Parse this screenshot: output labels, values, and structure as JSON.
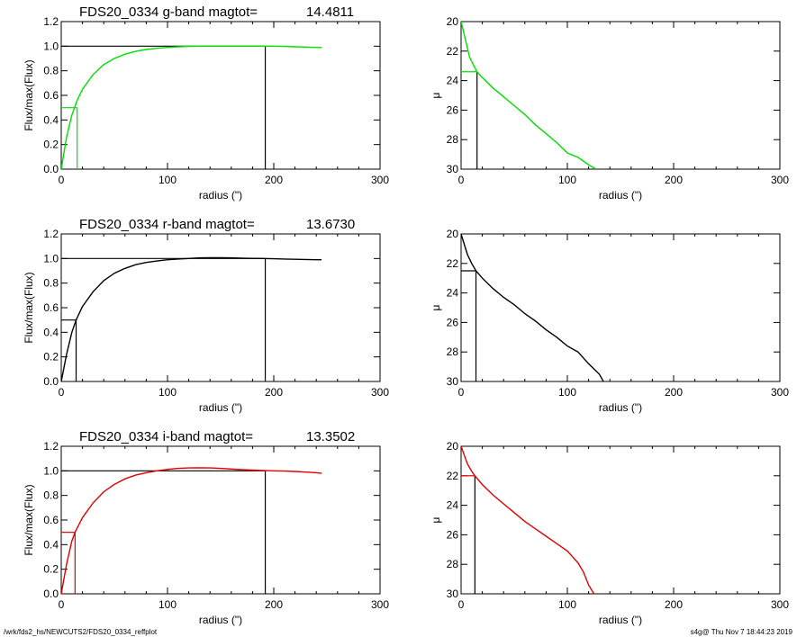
{
  "footer": {
    "left": "/wrk/fds2_hs/NEWCUTS2/FDS20_0334_reffplot",
    "right": "s4g@  Thu Nov  7 18:44:23 2019"
  },
  "colors": {
    "g": "#00e000",
    "r": "#000000",
    "i": "#e00000",
    "frame": "#000000"
  },
  "chart_data": [
    {
      "type": "line",
      "band": "g",
      "panel": "growth-curve",
      "title": "FDS20_0334 g-band  magtot=",
      "magtot": "14.4811",
      "xlabel": "radius (\")",
      "ylabel": "Flux/max(Flux)",
      "xlim": [
        0,
        300
      ],
      "ylim": [
        0,
        1.2
      ],
      "xticks": [
        "0",
        "100",
        "200",
        "300"
      ],
      "yticks": [
        "0.0",
        "0.2",
        "0.4",
        "0.6",
        "0.8",
        "1.0",
        "1.2"
      ],
      "series": [
        {
          "color": "#00e000",
          "x": [
            0,
            5,
            10,
            15,
            20,
            30,
            40,
            50,
            60,
            70,
            80,
            90,
            100,
            110,
            120,
            130,
            140,
            150,
            160,
            170,
            180,
            190,
            200,
            210,
            220,
            230,
            240,
            245
          ],
          "y": [
            0,
            0.26,
            0.44,
            0.56,
            0.65,
            0.77,
            0.85,
            0.9,
            0.935,
            0.958,
            0.973,
            0.983,
            0.99,
            0.995,
            0.998,
            1.0,
            1.0,
            1.0,
            1.0,
            1.0,
            1.0,
            1.0,
            1.0,
            0.998,
            0.995,
            0.993,
            0.99,
            0.99
          ]
        }
      ],
      "r_eff": 15,
      "r_half_flux": 0.5,
      "r_total": 192,
      "total_flux": 1.0
    },
    {
      "type": "line",
      "band": "g",
      "panel": "surface-brightness",
      "xlabel": "radius (\")",
      "ylabel": "μ",
      "xlim": [
        0,
        300
      ],
      "ylim": [
        30,
        20
      ],
      "xticks": [
        "0",
        "100",
        "200",
        "300"
      ],
      "yticks": [
        "20",
        "22",
        "24",
        "26",
        "28",
        "30"
      ],
      "series": [
        {
          "color": "#00e000",
          "x": [
            0,
            2,
            5,
            8,
            12,
            15,
            20,
            30,
            40,
            50,
            60,
            70,
            80,
            90,
            100,
            110,
            120,
            127
          ],
          "y": [
            20.0,
            20.6,
            21.5,
            22.4,
            23.0,
            23.4,
            23.8,
            24.5,
            25.1,
            25.7,
            26.3,
            27.0,
            27.6,
            28.2,
            28.9,
            29.2,
            29.7,
            30.0
          ]
        }
      ],
      "r_eff": 15,
      "mu_eff": 23.4
    },
    {
      "type": "line",
      "band": "r",
      "panel": "growth-curve",
      "title": "FDS20_0334 r-band  magtot=",
      "magtot": "13.6730",
      "xlabel": "radius (\")",
      "ylabel": "Flux/max(Flux)",
      "xlim": [
        0,
        300
      ],
      "ylim": [
        0,
        1.2
      ],
      "xticks": [
        "0",
        "100",
        "200",
        "300"
      ],
      "yticks": [
        "0.0",
        "0.2",
        "0.4",
        "0.6",
        "0.8",
        "1.0",
        "1.2"
      ],
      "series": [
        {
          "color": "#000000",
          "x": [
            0,
            5,
            10,
            14,
            20,
            30,
            40,
            50,
            60,
            70,
            80,
            90,
            100,
            110,
            120,
            130,
            140,
            150,
            160,
            170,
            180,
            190,
            200,
            210,
            220,
            230,
            240,
            245
          ],
          "y": [
            0,
            0.22,
            0.4,
            0.5,
            0.61,
            0.73,
            0.82,
            0.88,
            0.92,
            0.95,
            0.968,
            0.98,
            0.99,
            0.996,
            1.0,
            1.005,
            1.006,
            1.006,
            1.005,
            1.003,
            1.001,
            1.0,
            0.998,
            0.996,
            0.994,
            0.992,
            0.99,
            0.99
          ]
        }
      ],
      "r_eff": 14,
      "r_half_flux": 0.5,
      "r_total": 192,
      "total_flux": 1.0
    },
    {
      "type": "line",
      "band": "r",
      "panel": "surface-brightness",
      "xlabel": "radius (\")",
      "ylabel": "μ",
      "xlim": [
        0,
        300
      ],
      "ylim": [
        30,
        20
      ],
      "xticks": [
        "0",
        "100",
        "200",
        "300"
      ],
      "yticks": [
        "20",
        "22",
        "24",
        "26",
        "28",
        "30"
      ],
      "series": [
        {
          "color": "#000000",
          "x": [
            0,
            3,
            6,
            10,
            14,
            20,
            30,
            40,
            50,
            60,
            70,
            80,
            90,
            100,
            110,
            120,
            130,
            134
          ],
          "y": [
            20.0,
            20.7,
            21.4,
            22.0,
            22.5,
            23.0,
            23.7,
            24.3,
            24.8,
            25.4,
            25.9,
            26.5,
            27.0,
            27.6,
            28.0,
            28.8,
            29.5,
            30.0
          ]
        }
      ],
      "r_eff": 14,
      "mu_eff": 22.5
    },
    {
      "type": "line",
      "band": "i",
      "panel": "growth-curve",
      "title": "FDS20_0334 i-band  magtot=",
      "magtot": "13.3502",
      "xlabel": "radius (\")",
      "ylabel": "Flux/max(Flux)",
      "xlim": [
        0,
        300
      ],
      "ylim": [
        0,
        1.2
      ],
      "xticks": [
        "0",
        "100",
        "200",
        "300"
      ],
      "yticks": [
        "0.0",
        "0.2",
        "0.4",
        "0.6",
        "0.8",
        "1.0",
        "1.2"
      ],
      "series": [
        {
          "color": "#e00000",
          "x": [
            0,
            5,
            10,
            13,
            20,
            30,
            40,
            50,
            60,
            70,
            80,
            90,
            100,
            110,
            120,
            130,
            140,
            150,
            160,
            170,
            180,
            190,
            200,
            210,
            220,
            230,
            240,
            245
          ],
          "y": [
            0,
            0.24,
            0.43,
            0.5,
            0.62,
            0.74,
            0.83,
            0.89,
            0.935,
            0.965,
            0.985,
            1.0,
            1.012,
            1.02,
            1.024,
            1.025,
            1.024,
            1.02,
            1.015,
            1.01,
            1.006,
            1.003,
            1.0,
            0.998,
            0.995,
            0.99,
            0.985,
            0.98
          ]
        }
      ],
      "r_eff": 13,
      "r_half_flux": 0.5,
      "r_total": 192,
      "total_flux": 1.0
    },
    {
      "type": "line",
      "band": "i",
      "panel": "surface-brightness",
      "xlabel": "radius (\")",
      "ylabel": "μ",
      "xlim": [
        0,
        300
      ],
      "ylim": [
        30,
        20
      ],
      "xticks": [
        "0",
        "100",
        "200",
        "300"
      ],
      "yticks": [
        "20",
        "22",
        "24",
        "26",
        "28",
        "30"
      ],
      "series": [
        {
          "color": "#e00000",
          "x": [
            0,
            3,
            6,
            10,
            13,
            20,
            30,
            40,
            50,
            60,
            70,
            80,
            90,
            100,
            110,
            115,
            120,
            125
          ],
          "y": [
            20.0,
            20.6,
            21.2,
            21.7,
            22.0,
            22.6,
            23.3,
            23.9,
            24.5,
            25.1,
            25.6,
            26.1,
            26.6,
            27.1,
            27.9,
            28.5,
            29.4,
            30.0
          ]
        }
      ],
      "r_eff": 13,
      "mu_eff": 22.0
    }
  ]
}
